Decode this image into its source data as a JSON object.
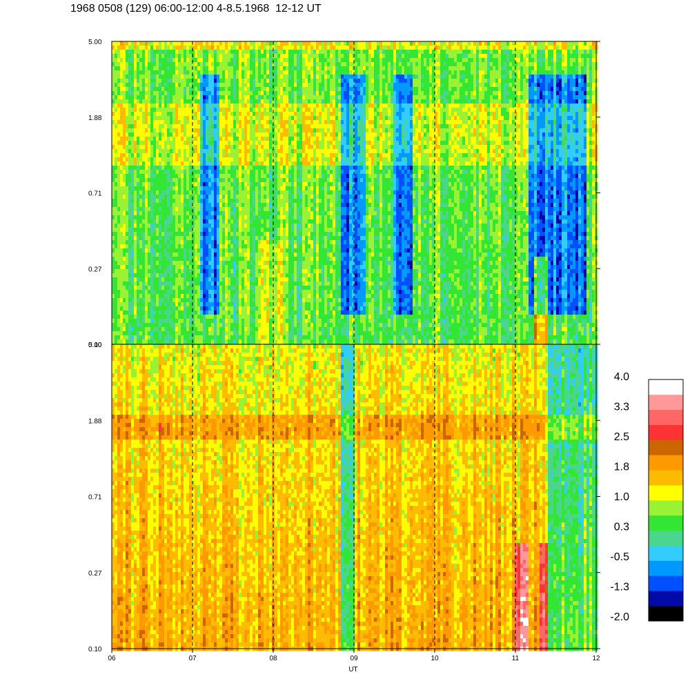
{
  "title": "1968 0508 (129) 06:00-12:00 4-8.5.1968  12-12 UT",
  "chart_data": {
    "type": "heatmap",
    "xlabel": "UT",
    "x_ticks": [
      "06",
      "07",
      "08",
      "09",
      "10",
      "11",
      "12"
    ],
    "x_range": [
      6,
      12
    ],
    "y_ticks": [
      "0.10",
      "0.27",
      "0.71",
      "1.88",
      "5.00"
    ],
    "y_range": [
      0.1,
      5.0
    ],
    "y_scale": "log",
    "panels": 2,
    "colorbar": {
      "labels": [
        "4.0",
        "3.3",
        "2.5",
        "1.8",
        "1.0",
        "0.3",
        "-0.5",
        "-1.3",
        "-2.0"
      ],
      "colors": [
        "#000000",
        "#000aa8",
        "#0050ff",
        "#0099ff",
        "#33ccff",
        "#4ad68c",
        "#33e633",
        "#99f233",
        "#ffff00",
        "#ffbb00",
        "#ff9900",
        "#cc6600",
        "#ff3333",
        "#ff6666",
        "#ff9999",
        "#ffffff"
      ]
    }
  }
}
